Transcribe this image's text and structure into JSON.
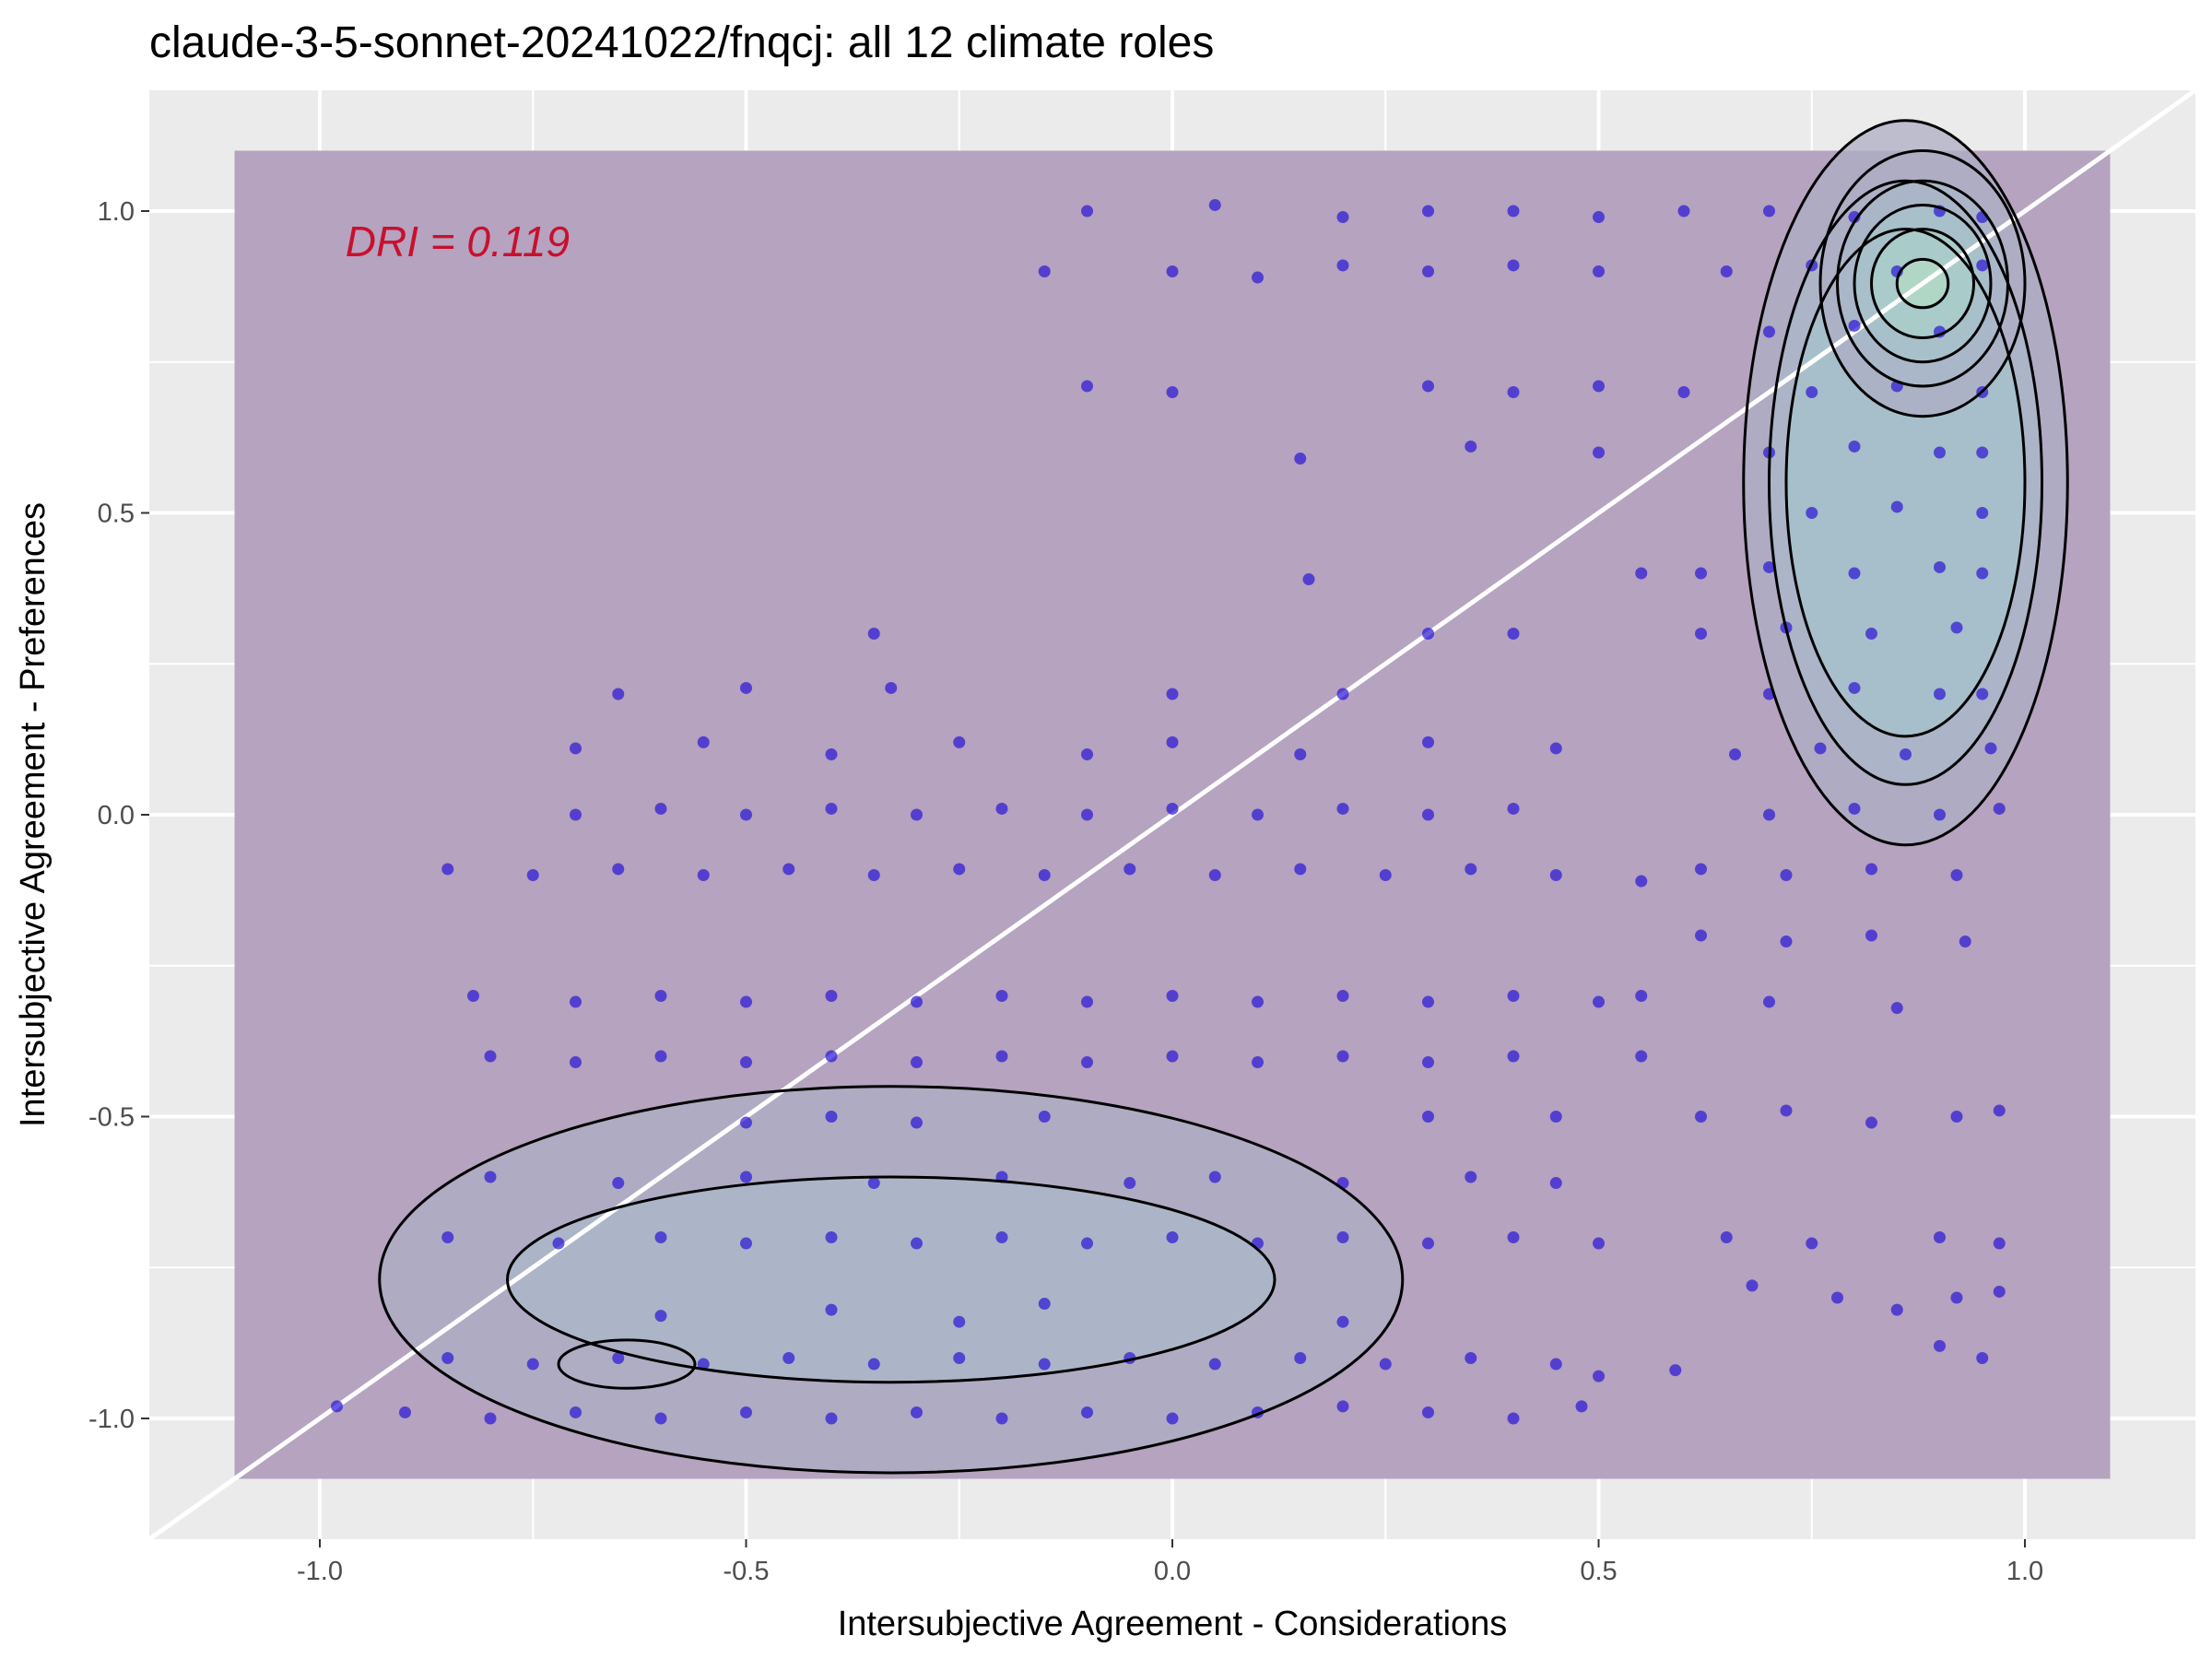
{
  "chart_data": {
    "type": "scatter",
    "title": "claude-3-5-sonnet-20241022/fnqcj: all 12 climate roles",
    "xlabel": "Intersubjective Agreement - Considerations",
    "ylabel": "Intersubjective Agreement - Preferences",
    "xlim": [
      -1.2,
      1.2
    ],
    "ylim": [
      -1.2,
      1.2
    ],
    "x_ticks": [
      -1.0,
      -0.5,
      0.0,
      0.5,
      1.0
    ],
    "x_tick_labels": [
      "-1.0",
      "-0.5",
      "0.0",
      "0.5",
      "1.0"
    ],
    "y_ticks": [
      -1.0,
      -0.5,
      0.0,
      0.5,
      1.0
    ],
    "y_tick_labels": [
      "-1.0",
      "-0.5",
      "0.0",
      "0.5",
      "1.0"
    ],
    "grid": true,
    "annotation": {
      "text": "DRI = 0.119",
      "x": -0.97,
      "y": 0.95,
      "color": "#c8102e"
    },
    "reference_line": {
      "type": "diagonal",
      "slope": 1,
      "intercept": 0,
      "color": "#ffffff"
    },
    "density_region": {
      "xlim": [
        -1.1,
        1.1
      ],
      "ylim": [
        -1.1,
        1.1
      ],
      "fill": "#b5a3bf"
    },
    "point_color": "#2a14d6",
    "series": [
      {
        "name": "",
        "points": [
          [
            -0.98,
            -0.98
          ],
          [
            -0.9,
            -0.99
          ],
          [
            -0.8,
            -1.0
          ],
          [
            -0.7,
            -0.99
          ],
          [
            -0.6,
            -1.0
          ],
          [
            -0.5,
            -0.99
          ],
          [
            -0.4,
            -1.0
          ],
          [
            -0.3,
            -0.99
          ],
          [
            -0.2,
            -1.0
          ],
          [
            -0.1,
            -0.99
          ],
          [
            0.0,
            -1.0
          ],
          [
            0.1,
            -0.99
          ],
          [
            0.2,
            -0.98
          ],
          [
            0.3,
            -0.99
          ],
          [
            0.4,
            -1.0
          ],
          [
            0.48,
            -0.98
          ],
          [
            -0.85,
            -0.9
          ],
          [
            -0.75,
            -0.91
          ],
          [
            -0.65,
            -0.9
          ],
          [
            -0.55,
            -0.91
          ],
          [
            -0.45,
            -0.9
          ],
          [
            -0.35,
            -0.91
          ],
          [
            -0.25,
            -0.9
          ],
          [
            -0.15,
            -0.91
          ],
          [
            -0.05,
            -0.9
          ],
          [
            0.05,
            -0.91
          ],
          [
            0.15,
            -0.9
          ],
          [
            0.25,
            -0.91
          ],
          [
            0.35,
            -0.9
          ],
          [
            0.45,
            -0.91
          ],
          [
            0.5,
            -0.93
          ],
          [
            -0.6,
            -0.83
          ],
          [
            -0.4,
            -0.82
          ],
          [
            -0.25,
            -0.84
          ],
          [
            -0.15,
            -0.81
          ],
          [
            0.2,
            -0.84
          ],
          [
            -0.85,
            -0.7
          ],
          [
            -0.72,
            -0.71
          ],
          [
            -0.6,
            -0.7
          ],
          [
            -0.5,
            -0.71
          ],
          [
            -0.4,
            -0.7
          ],
          [
            -0.3,
            -0.71
          ],
          [
            -0.2,
            -0.7
          ],
          [
            -0.1,
            -0.71
          ],
          [
            0.0,
            -0.7
          ],
          [
            0.1,
            -0.71
          ],
          [
            0.2,
            -0.7
          ],
          [
            0.3,
            -0.71
          ],
          [
            0.4,
            -0.7
          ],
          [
            0.5,
            -0.71
          ],
          [
            -0.8,
            -0.6
          ],
          [
            -0.65,
            -0.61
          ],
          [
            -0.5,
            -0.6
          ],
          [
            -0.35,
            -0.61
          ],
          [
            -0.2,
            -0.6
          ],
          [
            -0.05,
            -0.61
          ],
          [
            0.05,
            -0.6
          ],
          [
            0.2,
            -0.61
          ],
          [
            0.35,
            -0.6
          ],
          [
            0.45,
            -0.61
          ],
          [
            -0.5,
            -0.51
          ],
          [
            -0.4,
            -0.5
          ],
          [
            -0.3,
            -0.51
          ],
          [
            -0.15,
            -0.5
          ],
          [
            0.3,
            -0.5
          ],
          [
            0.45,
            -0.5
          ],
          [
            -0.8,
            -0.4
          ],
          [
            -0.7,
            -0.41
          ],
          [
            -0.6,
            -0.4
          ],
          [
            -0.5,
            -0.41
          ],
          [
            -0.4,
            -0.4
          ],
          [
            -0.3,
            -0.41
          ],
          [
            -0.2,
            -0.4
          ],
          [
            -0.1,
            -0.41
          ],
          [
            0.0,
            -0.4
          ],
          [
            0.1,
            -0.41
          ],
          [
            0.2,
            -0.4
          ],
          [
            0.3,
            -0.41
          ],
          [
            0.4,
            -0.4
          ],
          [
            0.55,
            -0.4
          ],
          [
            -0.82,
            -0.3
          ],
          [
            -0.7,
            -0.31
          ],
          [
            -0.6,
            -0.3
          ],
          [
            -0.5,
            -0.31
          ],
          [
            -0.4,
            -0.3
          ],
          [
            -0.3,
            -0.31
          ],
          [
            -0.2,
            -0.3
          ],
          [
            -0.1,
            -0.31
          ],
          [
            0.0,
            -0.3
          ],
          [
            0.1,
            -0.31
          ],
          [
            0.2,
            -0.3
          ],
          [
            0.3,
            -0.31
          ],
          [
            0.4,
            -0.3
          ],
          [
            0.5,
            -0.31
          ],
          [
            0.55,
            -0.3
          ],
          [
            -0.85,
            -0.09
          ],
          [
            -0.75,
            -0.1
          ],
          [
            -0.65,
            -0.09
          ],
          [
            -0.55,
            -0.1
          ],
          [
            -0.45,
            -0.09
          ],
          [
            -0.35,
            -0.1
          ],
          [
            -0.25,
            -0.09
          ],
          [
            -0.15,
            -0.1
          ],
          [
            -0.05,
            -0.09
          ],
          [
            0.05,
            -0.1
          ],
          [
            0.15,
            -0.09
          ],
          [
            0.25,
            -0.1
          ],
          [
            0.35,
            -0.09
          ],
          [
            0.45,
            -0.1
          ],
          [
            0.55,
            -0.11
          ],
          [
            -0.7,
            0.0
          ],
          [
            -0.6,
            0.01
          ],
          [
            -0.5,
            0.0
          ],
          [
            -0.4,
            0.01
          ],
          [
            -0.3,
            0.0
          ],
          [
            -0.2,
            0.01
          ],
          [
            -0.1,
            0.0
          ],
          [
            0.0,
            0.01
          ],
          [
            0.1,
            0.0
          ],
          [
            0.2,
            0.01
          ],
          [
            0.3,
            0.0
          ],
          [
            0.4,
            0.01
          ],
          [
            -0.7,
            0.11
          ],
          [
            -0.55,
            0.12
          ],
          [
            -0.4,
            0.1
          ],
          [
            -0.25,
            0.12
          ],
          [
            -0.1,
            0.1
          ],
          [
            0.0,
            0.12
          ],
          [
            0.15,
            0.1
          ],
          [
            0.3,
            0.12
          ],
          [
            0.45,
            0.11
          ],
          [
            -0.65,
            0.2
          ],
          [
            -0.5,
            0.21
          ],
          [
            -0.33,
            0.21
          ],
          [
            0.0,
            0.2
          ],
          [
            0.2,
            0.2
          ],
          [
            0.3,
            0.3
          ],
          [
            0.4,
            0.3
          ],
          [
            -0.35,
            0.3
          ],
          [
            0.55,
            0.4
          ],
          [
            0.16,
            0.39
          ],
          [
            0.15,
            0.59
          ],
          [
            0.0,
            0.7
          ],
          [
            -0.1,
            0.71
          ],
          [
            0.3,
            0.71
          ],
          [
            0.4,
            0.7
          ],
          [
            0.5,
            0.71
          ],
          [
            0.6,
            0.7
          ],
          [
            0.5,
            0.6
          ],
          [
            0.35,
            0.61
          ],
          [
            -0.15,
            0.9
          ],
          [
            0.0,
            0.9
          ],
          [
            0.1,
            0.89
          ],
          [
            0.2,
            0.91
          ],
          [
            0.3,
            0.9
          ],
          [
            0.4,
            0.91
          ],
          [
            0.5,
            0.9
          ],
          [
            -0.1,
            1.0
          ],
          [
            0.05,
            1.01
          ],
          [
            0.2,
            0.99
          ],
          [
            0.3,
            1.0
          ],
          [
            0.4,
            1.0
          ],
          [
            0.5,
            0.99
          ],
          [
            0.6,
            1.0
          ],
          [
            0.7,
            1.0
          ],
          [
            0.8,
            0.99
          ],
          [
            0.9,
            1.0
          ],
          [
            0.95,
            0.99
          ],
          [
            0.65,
            0.9
          ],
          [
            0.75,
            0.91
          ],
          [
            0.85,
            0.9
          ],
          [
            0.95,
            0.91
          ],
          [
            0.7,
            0.8
          ],
          [
            0.8,
            0.81
          ],
          [
            0.9,
            0.8
          ],
          [
            0.75,
            0.7
          ],
          [
            0.85,
            0.71
          ],
          [
            0.95,
            0.7
          ],
          [
            0.7,
            0.6
          ],
          [
            0.8,
            0.61
          ],
          [
            0.9,
            0.6
          ],
          [
            0.95,
            0.6
          ],
          [
            0.75,
            0.5
          ],
          [
            0.85,
            0.51
          ],
          [
            0.95,
            0.5
          ],
          [
            0.62,
            0.4
          ],
          [
            0.7,
            0.41
          ],
          [
            0.8,
            0.4
          ],
          [
            0.9,
            0.41
          ],
          [
            0.95,
            0.4
          ],
          [
            0.62,
            0.3
          ],
          [
            0.72,
            0.31
          ],
          [
            0.82,
            0.3
          ],
          [
            0.92,
            0.31
          ],
          [
            0.7,
            0.2
          ],
          [
            0.8,
            0.21
          ],
          [
            0.9,
            0.2
          ],
          [
            0.95,
            0.2
          ],
          [
            0.66,
            0.1
          ],
          [
            0.76,
            0.11
          ],
          [
            0.86,
            0.1
          ],
          [
            0.96,
            0.11
          ],
          [
            0.7,
            0.0
          ],
          [
            0.8,
            0.01
          ],
          [
            0.9,
            0.0
          ],
          [
            0.97,
            0.01
          ],
          [
            0.62,
            -0.09
          ],
          [
            0.72,
            -0.1
          ],
          [
            0.82,
            -0.09
          ],
          [
            0.92,
            -0.1
          ],
          [
            0.62,
            -0.2
          ],
          [
            0.72,
            -0.21
          ],
          [
            0.82,
            -0.2
          ],
          [
            0.93,
            -0.21
          ],
          [
            0.7,
            -0.31
          ],
          [
            0.85,
            -0.32
          ],
          [
            0.62,
            -0.5
          ],
          [
            0.72,
            -0.49
          ],
          [
            0.82,
            -0.51
          ],
          [
            0.92,
            -0.5
          ],
          [
            0.97,
            -0.49
          ],
          [
            0.65,
            -0.7
          ],
          [
            0.75,
            -0.71
          ],
          [
            0.9,
            -0.7
          ],
          [
            0.97,
            -0.71
          ],
          [
            0.68,
            -0.78
          ],
          [
            0.78,
            -0.8
          ],
          [
            0.85,
            -0.82
          ],
          [
            0.92,
            -0.8
          ],
          [
            0.97,
            -0.79
          ],
          [
            0.9,
            -0.88
          ],
          [
            0.95,
            -0.9
          ],
          [
            0.59,
            -0.92
          ]
        ]
      }
    ]
  }
}
